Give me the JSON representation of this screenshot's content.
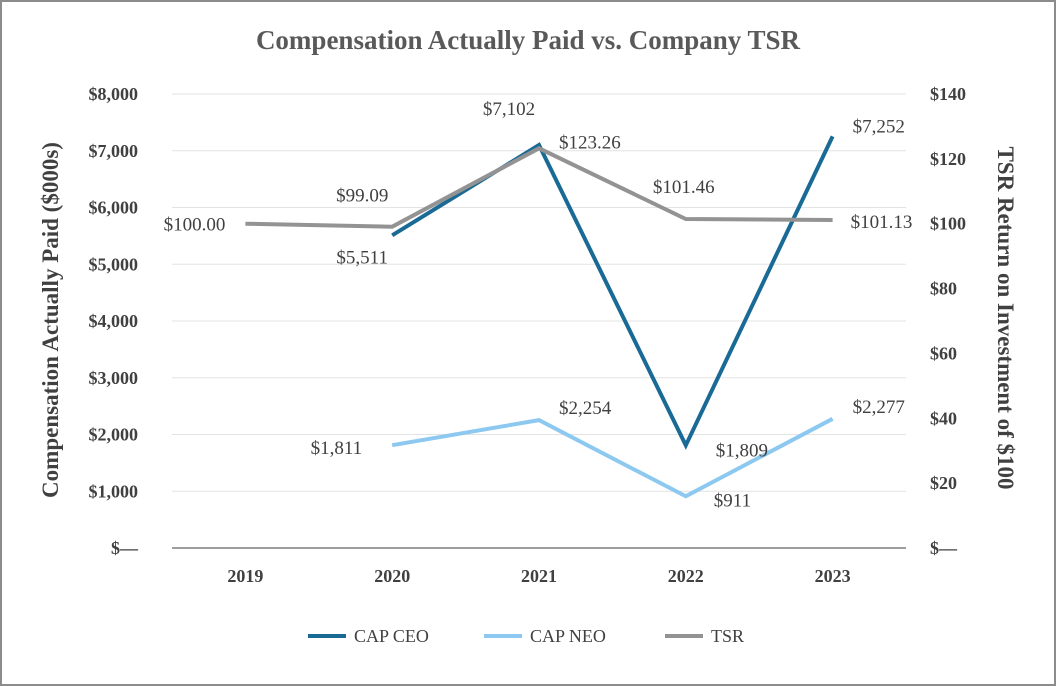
{
  "chart_data": {
    "type": "line",
    "title": "Compensation Actually Paid vs. Company TSR",
    "categories": [
      "2019",
      "2020",
      "2021",
      "2022",
      "2023"
    ],
    "ylabel": "Compensation Actually Paid ($000s)",
    "y2label": "TSR Return on Investment of $100",
    "ylim": [
      0,
      8000
    ],
    "y2lim": [
      0,
      140
    ],
    "yticks": [
      "$—",
      "$1,000",
      "$2,000",
      "$3,000",
      "$4,000",
      "$5,000",
      "$6,000",
      "$7,000",
      "$8,000"
    ],
    "y2ticks": [
      "$—",
      "$20",
      "$40",
      "$60",
      "$80",
      "$100",
      "$120",
      "$140"
    ],
    "grid": true,
    "legend_position": "bottom",
    "series": [
      {
        "name": "CAP CEO",
        "axis": "left",
        "color": "#1a6a96",
        "values": [
          null,
          5511,
          7102,
          1809,
          7252
        ],
        "labels": [
          null,
          "$5,511",
          "$7,102",
          "$1,809",
          "$7,252"
        ]
      },
      {
        "name": "CAP NEO",
        "axis": "left",
        "color": "#8dc8f0",
        "values": [
          null,
          1811,
          2254,
          911,
          2277
        ],
        "labels": [
          null,
          "$1,811",
          "$2,254",
          "$911",
          "$2,277"
        ]
      },
      {
        "name": "TSR",
        "axis": "right",
        "color": "#939393",
        "values": [
          100.0,
          99.09,
          123.26,
          101.46,
          101.13
        ],
        "labels": [
          "$100.00",
          "$99.09",
          "$123.26",
          "$101.46",
          "$101.13"
        ]
      }
    ]
  }
}
